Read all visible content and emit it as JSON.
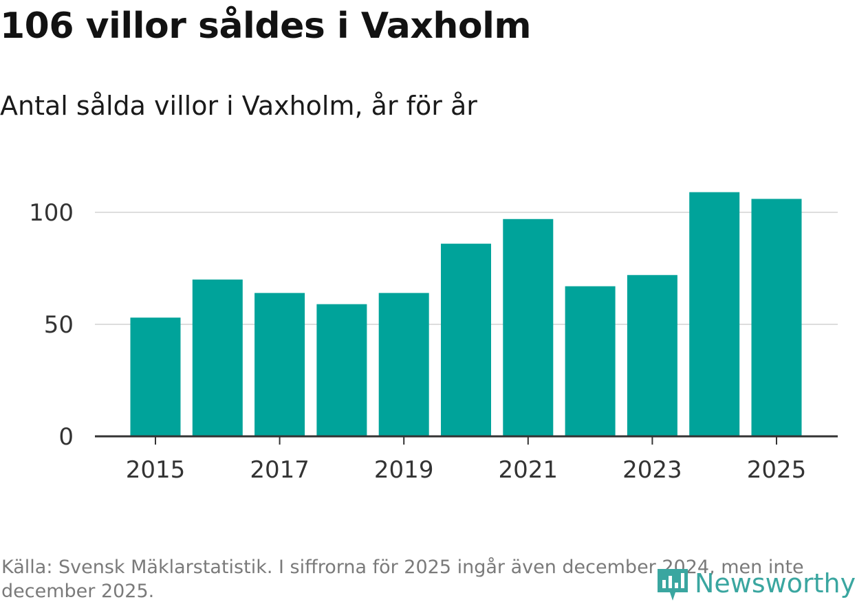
{
  "header": {
    "title": "106 villor såldes i Vaxholm",
    "subtitle": "Antal sålda villor i Vaxholm, år för år"
  },
  "footer": {
    "source": "Källa: Svensk Mäklarstatistik. I siffrorna för 2025 ingår även december 2024, men inte december 2025.",
    "logo_text": "Newsworthy"
  },
  "colors": {
    "bar": "#00a39a",
    "grid": "#dddddd",
    "axis": "#333333",
    "tick_text": "#333333",
    "logo": "#3aa6a0"
  },
  "chart_data": {
    "type": "bar",
    "title": "106 villor såldes i Vaxholm",
    "subtitle": "Antal sålda villor i Vaxholm, år för år",
    "categories": [
      "2015",
      "2016",
      "2017",
      "2018",
      "2019",
      "2020",
      "2021",
      "2022",
      "2023",
      "2024",
      "2025"
    ],
    "values": [
      53,
      70,
      64,
      59,
      64,
      86,
      97,
      67,
      72,
      109,
      106
    ],
    "x_tick_labels": [
      "2015",
      "2017",
      "2019",
      "2021",
      "2023",
      "2025"
    ],
    "y_ticks": [
      0,
      50,
      100
    ],
    "ylim": [
      0,
      115
    ],
    "xlabel": "",
    "ylabel": "",
    "grid": true,
    "legend": "none"
  }
}
